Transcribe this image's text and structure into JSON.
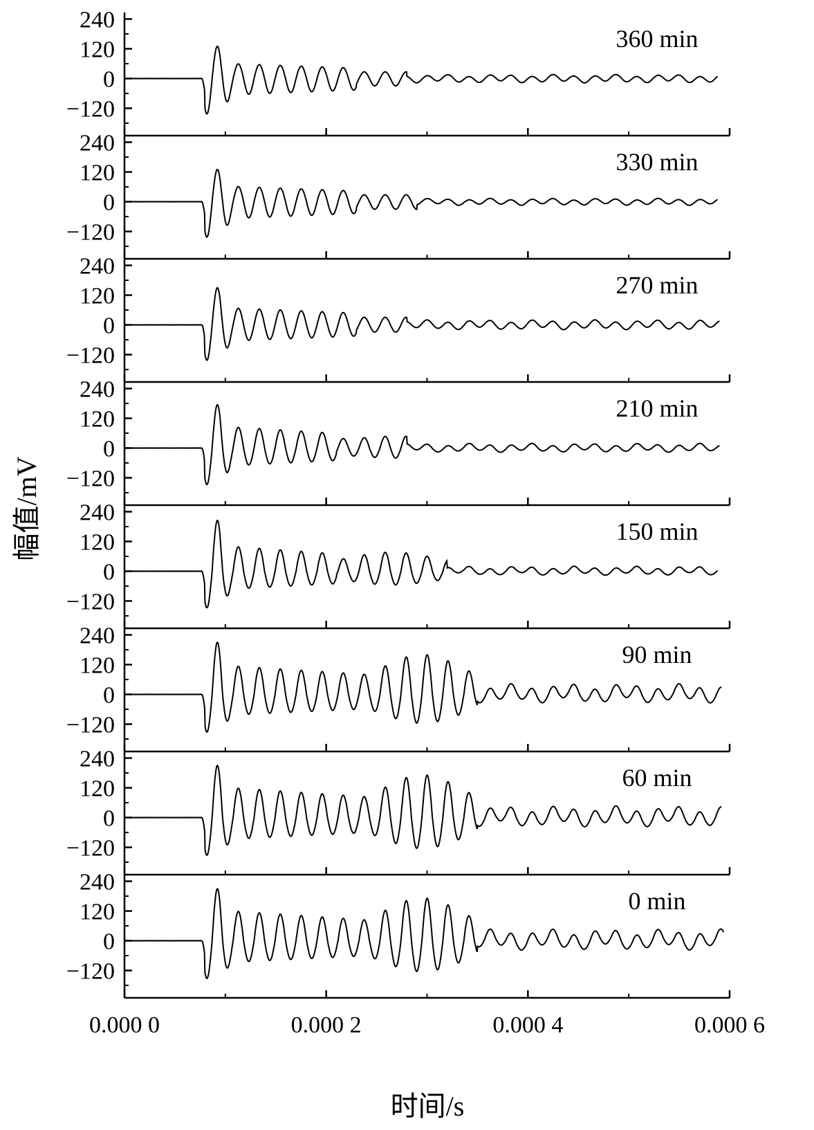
{
  "chart_data": {
    "type": "line",
    "title": "",
    "xlabel": "时间/s",
    "ylabel": "幅值/mV",
    "xlim": [
      0,
      0.0006
    ],
    "ylim": [
      -180,
      240
    ],
    "x_tick_labels": [
      "0.000 0",
      "0.000 2",
      "0.000 4",
      "0.000 6"
    ],
    "x_tick_values": [
      0,
      0.0002,
      0.0004,
      0.0006
    ],
    "y_tick_labels": [
      "240",
      "120",
      "0",
      "−120"
    ],
    "y_tick_values": [
      240,
      120,
      0,
      -120
    ],
    "grid": false,
    "line_color": "#000000",
    "panels": [
      {
        "label": "360 min",
        "onset": 7.65e-05,
        "end": 0.000588,
        "peak": 130,
        "trough": -150,
        "mid": 60,
        "tail": 12,
        "mid_end": 0.00023,
        "tail_start": 0.00028,
        "burst2": 0,
        "burst2_end": 0.00028
      },
      {
        "label": "330 min",
        "onset": 7.65e-05,
        "end": 0.000588,
        "peak": 130,
        "trough": -150,
        "mid": 62,
        "tail": 10,
        "mid_end": 0.00023,
        "tail_start": 0.00029,
        "burst2": 0,
        "burst2_end": 0.00029
      },
      {
        "label": "270 min",
        "onset": 7.65e-05,
        "end": 0.00059,
        "peak": 150,
        "trough": -150,
        "mid": 68,
        "tail": 15,
        "mid_end": 0.00023,
        "tail_start": 0.00028,
        "burst2": 0,
        "burst2_end": 0.00028
      },
      {
        "label": "210 min",
        "onset": 7.65e-05,
        "end": 0.00059,
        "peak": 175,
        "trough": -155,
        "mid": 85,
        "tail": 14,
        "mid_end": 0.00021,
        "tail_start": 0.00028,
        "burst2": 25,
        "burst2_end": 0.00033
      },
      {
        "label": "150 min",
        "onset": 7.65e-05,
        "end": 0.000588,
        "peak": 205,
        "trough": -155,
        "mid": 100,
        "tail": 15,
        "mid_end": 0.00021,
        "tail_start": 0.00032,
        "burst2": 50,
        "burst2_end": 0.00032
      },
      {
        "label": "90 min",
        "onset": 7.65e-05,
        "end": 0.000592,
        "peak": 210,
        "trough": -160,
        "mid": 115,
        "tail": 32,
        "mid_end": 0.00024,
        "tail_start": 0.00035,
        "burst2": 130,
        "burst2_end": 0.00035
      },
      {
        "label": "60 min",
        "onset": 7.65e-05,
        "end": 0.000592,
        "peak": 210,
        "trough": -160,
        "mid": 120,
        "tail": 35,
        "mid_end": 0.00024,
        "tail_start": 0.00035,
        "burst2": 140,
        "burst2_end": 0.00035
      },
      {
        "label": "0 min",
        "onset": 7.65e-05,
        "end": 0.000594,
        "peak": 210,
        "trough": -160,
        "mid": 120,
        "tail": 35,
        "mid_end": 0.00024,
        "tail_start": 0.00035,
        "burst2": 140,
        "burst2_end": 0.00035
      }
    ]
  }
}
